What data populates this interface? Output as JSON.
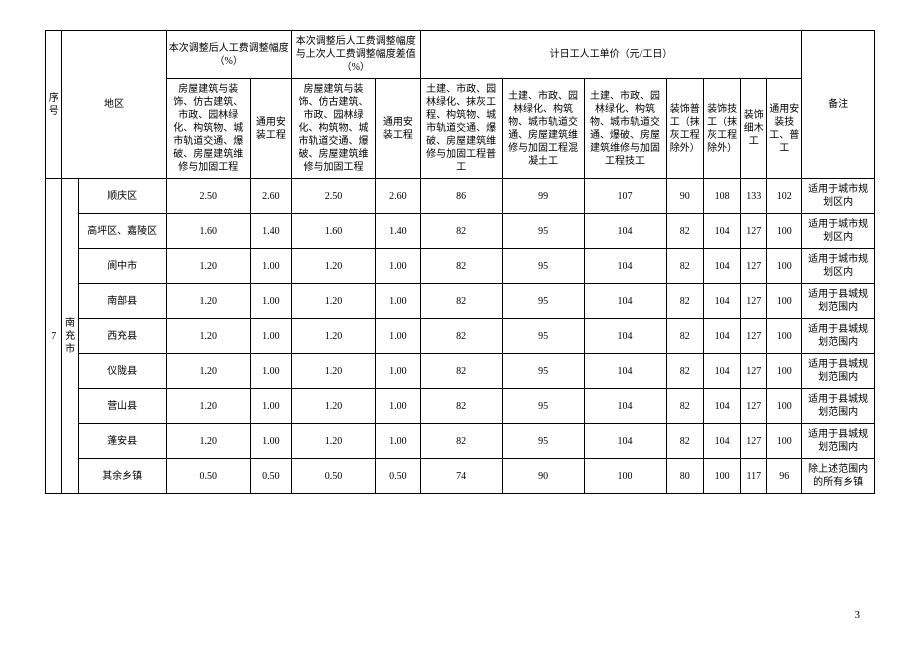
{
  "headers": {
    "seq": "序号",
    "region": "地区",
    "adj_group": "本次调整后人工费调整幅度（%）",
    "diff_group": "本次调整后人工费调整幅度与上次人工费调整幅度差值（%）",
    "price_group": "计日工人工单价（元/工日）",
    "note": "备注",
    "adj1": "房屋建筑与装饰、仿古建筑、市政、园林绿化、构筑物、城市轨道交通、爆破、房屋建筑维修与加固工程",
    "adj2": "通用安装工程",
    "diff1": "房屋建筑与装饰、仿古建筑、市政、园林绿化、构筑物、城市轨道交通、爆破、房屋建筑维修与加固工程",
    "diff2": "通用安装工程",
    "p1": "土建、市政、园林绿化、抹灰工程、构筑物、城市轨道交通、爆破、房屋建筑维修与加固工程普工",
    "p2": "土建、市政、园林绿化、构筑物、城市轨道交通、房屋建筑维修与加固工程混凝土工",
    "p3": "土建、市政、园林绿化、构筑物、城市轨道交通、爆破、房屋建筑维修与加固工程技工",
    "p4": "装饰普工（抹灰工程除外）",
    "p5": "装饰技工（抹灰工程除外）",
    "p6": "装饰细木工",
    "p7": "通用安装技工、普工"
  },
  "group_seq": "7",
  "group_region": "南充市",
  "rows": [
    {
      "district": "顺庆区",
      "a1": "2.50",
      "a2": "2.60",
      "d1": "2.50",
      "d2": "2.60",
      "p1": "86",
      "p2": "99",
      "p3": "107",
      "p4": "90",
      "p5": "108",
      "p6": "133",
      "p7": "102",
      "note": "适用于城市规划区内"
    },
    {
      "district": "高坪区、嘉陵区",
      "a1": "1.60",
      "a2": "1.40",
      "d1": "1.60",
      "d2": "1.40",
      "p1": "82",
      "p2": "95",
      "p3": "104",
      "p4": "82",
      "p5": "104",
      "p6": "127",
      "p7": "100",
      "note": "适用于城市规划区内"
    },
    {
      "district": "阆中市",
      "a1": "1.20",
      "a2": "1.00",
      "d1": "1.20",
      "d2": "1.00",
      "p1": "82",
      "p2": "95",
      "p3": "104",
      "p4": "82",
      "p5": "104",
      "p6": "127",
      "p7": "100",
      "note": "适用于城市规划区内"
    },
    {
      "district": "南部县",
      "a1": "1.20",
      "a2": "1.00",
      "d1": "1.20",
      "d2": "1.00",
      "p1": "82",
      "p2": "95",
      "p3": "104",
      "p4": "82",
      "p5": "104",
      "p6": "127",
      "p7": "100",
      "note": "适用于县城规划范围内"
    },
    {
      "district": "西充县",
      "a1": "1.20",
      "a2": "1.00",
      "d1": "1.20",
      "d2": "1.00",
      "p1": "82",
      "p2": "95",
      "p3": "104",
      "p4": "82",
      "p5": "104",
      "p6": "127",
      "p7": "100",
      "note": "适用于县城规划范围内"
    },
    {
      "district": "仪陇县",
      "a1": "1.20",
      "a2": "1.00",
      "d1": "1.20",
      "d2": "1.00",
      "p1": "82",
      "p2": "95",
      "p3": "104",
      "p4": "82",
      "p5": "104",
      "p6": "127",
      "p7": "100",
      "note": "适用于县城规划范围内"
    },
    {
      "district": "营山县",
      "a1": "1.20",
      "a2": "1.00",
      "d1": "1.20",
      "d2": "1.00",
      "p1": "82",
      "p2": "95",
      "p3": "104",
      "p4": "82",
      "p5": "104",
      "p6": "127",
      "p7": "100",
      "note": "适用于县城规划范围内"
    },
    {
      "district": "蓬安县",
      "a1": "1.20",
      "a2": "1.00",
      "d1": "1.20",
      "d2": "1.00",
      "p1": "82",
      "p2": "95",
      "p3": "104",
      "p4": "82",
      "p5": "104",
      "p6": "127",
      "p7": "100",
      "note": "适用于县城规划范围内"
    },
    {
      "district": "其余乡镇",
      "a1": "0.50",
      "a2": "0.50",
      "d1": "0.50",
      "d2": "0.50",
      "p1": "74",
      "p2": "90",
      "p3": "100",
      "p4": "80",
      "p5": "100",
      "p6": "117",
      "p7": "96",
      "note": "除上述范围内的所有乡镇"
    }
  ],
  "page_number": "3"
}
